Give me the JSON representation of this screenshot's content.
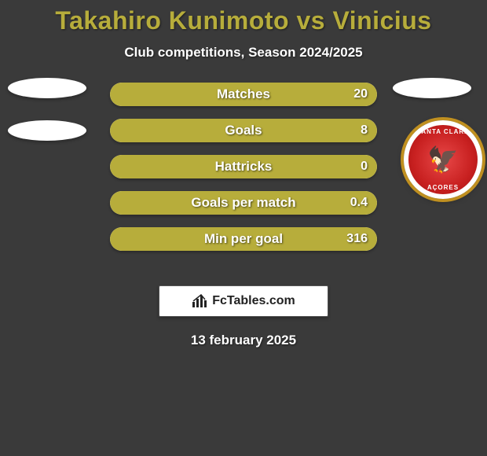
{
  "title": {
    "text": "Takahiro Kunimoto vs Vinicius",
    "color": "#b7ad3b",
    "fontsize": 32
  },
  "subtitle": "Club competitions, Season 2024/2025",
  "bars": {
    "background_color": "#f0e8b0",
    "fill_color": "#b7ad3b",
    "items": [
      {
        "label": "Matches",
        "right_val": "20",
        "right_width_pct": 100
      },
      {
        "label": "Goals",
        "right_val": "8",
        "right_width_pct": 100
      },
      {
        "label": "Hattricks",
        "right_val": "0",
        "right_width_pct": 100
      },
      {
        "label": "Goals per match",
        "right_val": "0.4",
        "right_width_pct": 100
      },
      {
        "label": "Min per goal",
        "right_val": "316",
        "right_width_pct": 100
      }
    ]
  },
  "badge": {
    "top_text": "SANTA CLARA",
    "bot_text": "AÇORES"
  },
  "footer": {
    "brand": "FcTables.com"
  },
  "date": "13 february 2025",
  "colors": {
    "page_bg": "#3a3a3a",
    "accent": "#b7ad3b",
    "bar_bg": "#f0e8b0",
    "text": "#ffffff"
  }
}
